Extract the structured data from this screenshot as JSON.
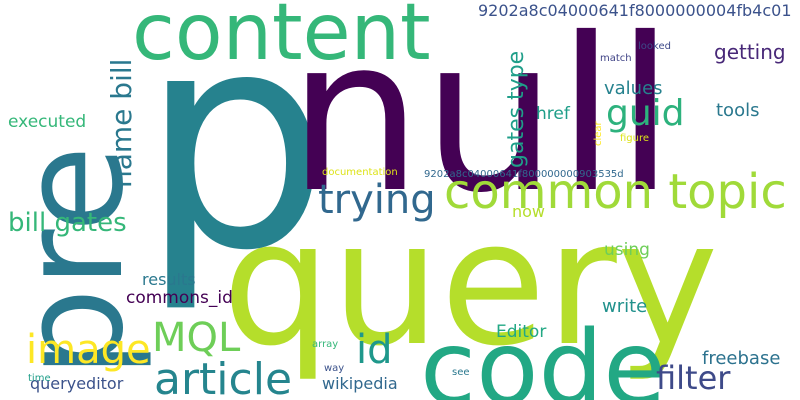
{
  "words": [
    {
      "text": "query",
      "color": "#b5de2b"
    },
    {
      "text": "p",
      "color": "#26828e"
    },
    {
      "text": "null",
      "color": "#440154"
    },
    {
      "text": "pre",
      "color": "#2a788e"
    },
    {
      "text": "code",
      "color": "#22a884"
    },
    {
      "text": "content",
      "color": "#35b779"
    },
    {
      "text": "common topic",
      "color": "#a0da39"
    },
    {
      "text": "article",
      "color": "#25858e"
    },
    {
      "text": "image",
      "color": "#fde725"
    },
    {
      "text": "trying",
      "color": "#31688e"
    },
    {
      "text": "MQL",
      "color": "#6ece58"
    },
    {
      "text": "id",
      "color": "#1f988b"
    },
    {
      "text": "filter",
      "color": "#3e4a89"
    },
    {
      "text": "guid",
      "color": "#2db27d"
    },
    {
      "text": "name bill",
      "color": "#2a788e"
    },
    {
      "text": "bill gates",
      "color": "#35b779"
    },
    {
      "text": "gates type",
      "color": "#1f9e89"
    },
    {
      "text": "9202a8c04000641f8000000004fb4c01",
      "color": "#3b528b"
    },
    {
      "text": "getting",
      "color": "#482878"
    },
    {
      "text": "tools",
      "color": "#2a788e"
    },
    {
      "text": "values",
      "color": "#26828e"
    },
    {
      "text": "href",
      "color": "#1f9e89"
    },
    {
      "text": "executed",
      "color": "#35b779"
    },
    {
      "text": "freebase",
      "color": "#2c728e"
    },
    {
      "text": "commons_id",
      "color": "#440154"
    },
    {
      "text": "results",
      "color": "#2a788e"
    },
    {
      "text": "using",
      "color": "#6ece58"
    },
    {
      "text": "write",
      "color": "#21918c"
    },
    {
      "text": "Editor",
      "color": "#22a884"
    },
    {
      "text": "queryeditor",
      "color": "#3b528b"
    },
    {
      "text": "wikipedia",
      "color": "#31688e"
    },
    {
      "text": "now",
      "color": "#b5de2b"
    },
    {
      "text": "9202a8c04000641f800000000903535d",
      "color": "#31688e"
    },
    {
      "text": "documentation",
      "color": "#dde318"
    },
    {
      "text": "match",
      "color": "#414487"
    },
    {
      "text": "looked",
      "color": "#3e4a89"
    },
    {
      "text": "clear",
      "color": "#fde725"
    },
    {
      "text": "figure",
      "color": "#dde318"
    },
    {
      "text": "array",
      "color": "#35b779"
    },
    {
      "text": "way",
      "color": "#3b528b"
    },
    {
      "text": "see",
      "color": "#2a788e"
    },
    {
      "text": "time",
      "color": "#1f9e89"
    }
  ]
}
